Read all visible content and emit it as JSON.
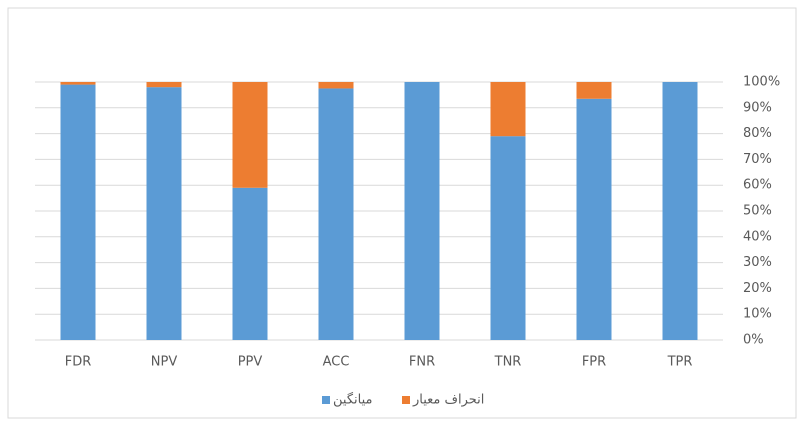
{
  "chart_data": {
    "type": "stacked_bar",
    "categories": [
      "FDR",
      "NPV",
      "PPV",
      "ACC",
      "FNR",
      "TNR",
      "FPR",
      "TPR"
    ],
    "series": [
      {
        "name": "میانگین",
        "color": "#5b9bd5",
        "values": [
          99,
          98,
          59,
          97.5,
          100,
          79,
          93.5,
          100
        ]
      },
      {
        "name": "انحراف معیار",
        "color": "#ed7d31",
        "values": [
          1,
          2,
          41,
          2.5,
          0,
          21,
          6.5,
          0
        ]
      }
    ],
    "ylim": [
      0,
      100
    ],
    "yticks": [
      {
        "value": 0,
        "label": "0%"
      },
      {
        "value": 10,
        "label": "10%"
      },
      {
        "value": 20,
        "label": "20%"
      },
      {
        "value": 30,
        "label": "30%"
      },
      {
        "value": 40,
        "label": "40%"
      },
      {
        "value": 50,
        "label": "50%"
      },
      {
        "value": 60,
        "label": "60%"
      },
      {
        "value": 70,
        "label": "70%"
      },
      {
        "value": 80,
        "label": "80%"
      },
      {
        "value": 90,
        "label": "90%"
      },
      {
        "value": 100,
        "label": "100%"
      }
    ],
    "grid": true,
    "y_axis_side": "right",
    "legend": "bottom"
  }
}
